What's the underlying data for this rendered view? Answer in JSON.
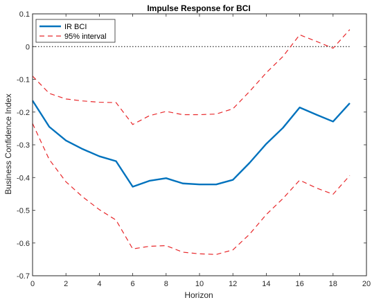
{
  "chart_data": {
    "type": "line",
    "title": "Impulse Response for BCI",
    "xlabel": "Horizon",
    "ylabel": "Business Confidence Index",
    "xlim": [
      0,
      20
    ],
    "ylim": [
      -0.7,
      0.1
    ],
    "xticks": [
      0,
      2,
      4,
      6,
      8,
      10,
      12,
      14,
      16,
      18,
      20
    ],
    "yticks": [
      0.1,
      0,
      -0.1,
      -0.2,
      -0.3,
      -0.4,
      -0.5,
      -0.6,
      -0.7
    ],
    "xtick_labels": [
      "0",
      "2",
      "4",
      "6",
      "8",
      "10",
      "12",
      "14",
      "16",
      "18",
      "20"
    ],
    "ytick_labels": [
      "0.1",
      "0",
      "-0.1",
      "-0.2",
      "-0.3",
      "-0.4",
      "-0.5",
      "-0.6",
      "-0.7"
    ],
    "grid": false,
    "legend_position": "top-left",
    "x": [
      0,
      1,
      2,
      3,
      4,
      5,
      6,
      7,
      8,
      9,
      10,
      11,
      12,
      13,
      14,
      15,
      16,
      17,
      18,
      19
    ],
    "zero_line": 0,
    "series": [
      {
        "name": "IR BCI",
        "color": "#0072BD",
        "style": "solid",
        "values": [
          -0.165,
          -0.245,
          -0.287,
          -0.313,
          -0.335,
          -0.35,
          -0.428,
          -0.41,
          -0.402,
          -0.418,
          -0.421,
          -0.421,
          -0.407,
          -0.355,
          -0.297,
          -0.248,
          -0.186,
          -0.208,
          -0.229,
          -0.173
        ]
      },
      {
        "name": "95% interval",
        "color": "#E8272A",
        "style": "dashed",
        "values": [
          -0.09,
          -0.143,
          -0.16,
          -0.166,
          -0.17,
          -0.171,
          -0.238,
          -0.211,
          -0.198,
          -0.208,
          -0.208,
          -0.206,
          -0.19,
          -0.137,
          -0.08,
          -0.03,
          0.036,
          0.016,
          -0.005,
          0.052
        ]
      },
      {
        "name": "",
        "color": "#E8272A",
        "style": "dashed",
        "values": [
          -0.235,
          -0.345,
          -0.413,
          -0.459,
          -0.498,
          -0.53,
          -0.618,
          -0.61,
          -0.608,
          -0.628,
          -0.633,
          -0.635,
          -0.621,
          -0.573,
          -0.513,
          -0.464,
          -0.408,
          -0.432,
          -0.451,
          -0.394
        ]
      }
    ]
  }
}
